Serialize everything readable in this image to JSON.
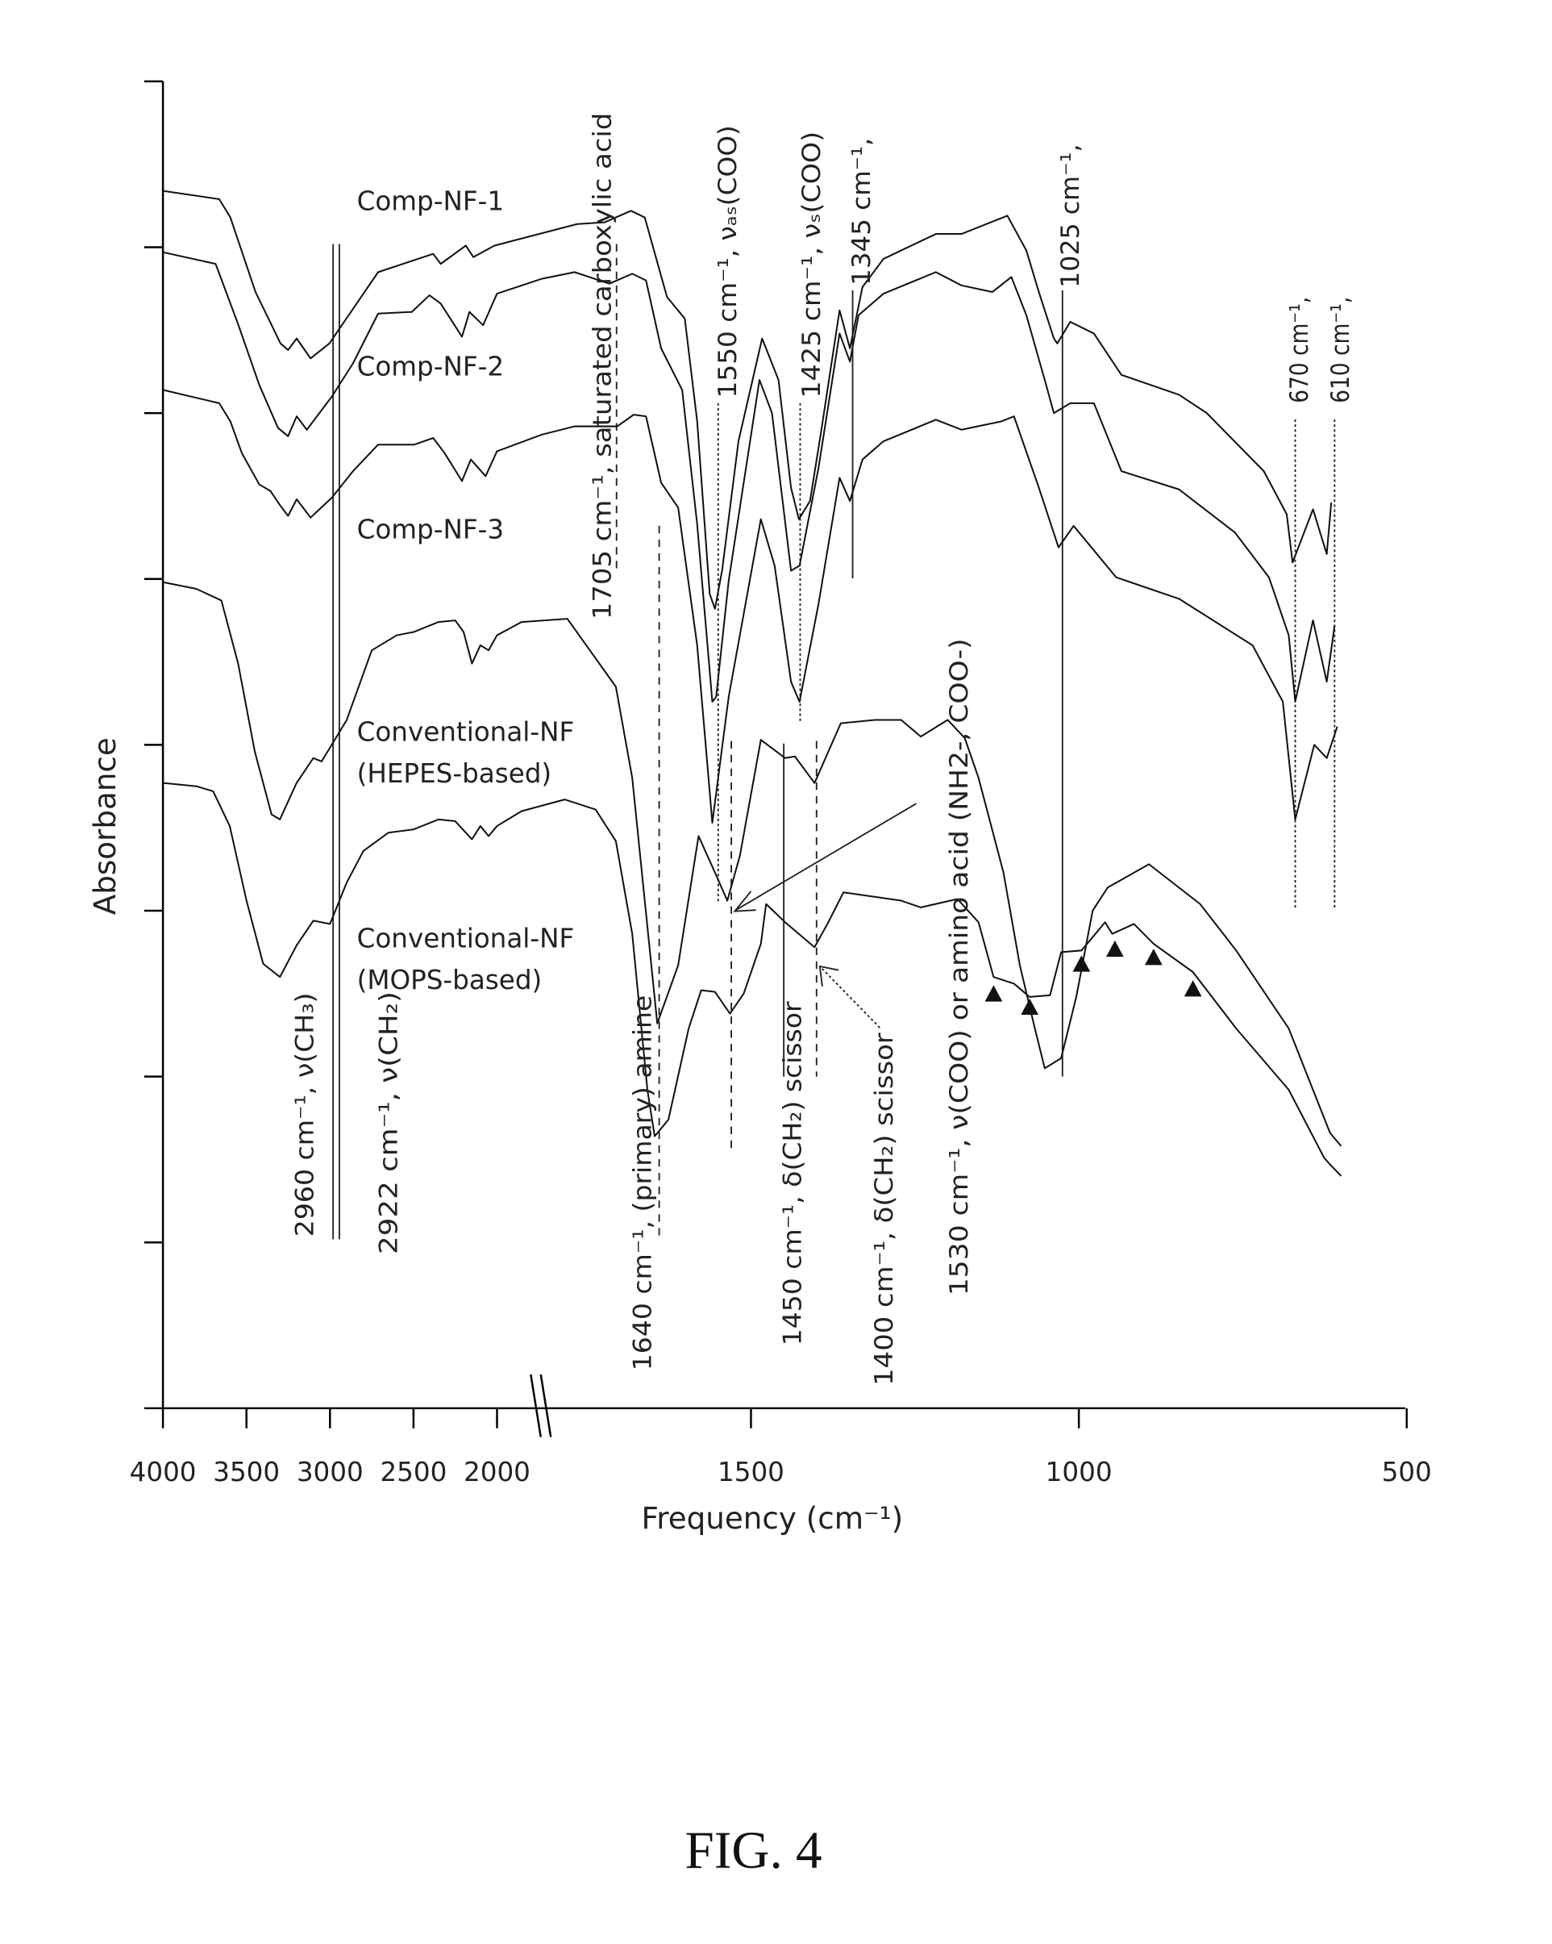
{
  "chart_data": {
    "type": "line",
    "title": "",
    "xlabel": "Frequency (cm⁻¹)",
    "ylabel": "Absorbance",
    "xlim": [
      4000,
      500
    ],
    "x_axis_break": [
      2000,
      1850
    ],
    "ylim": [
      0,
      8
    ],
    "grid": false,
    "x_ticks": [
      {
        "value": 4000,
        "label": "4000"
      },
      {
        "value": 3500,
        "label": "3500"
      },
      {
        "value": 3000,
        "label": "3000"
      },
      {
        "value": 2500,
        "label": "2500"
      },
      {
        "value": 2000,
        "label": "2000"
      },
      {
        "value": 1500,
        "label": "1500"
      },
      {
        "value": 1000,
        "label": "1000"
      },
      {
        "value": 500,
        "label": "500"
      }
    ],
    "y_ticks": [
      0,
      1,
      2,
      3,
      4,
      5,
      6,
      7,
      8
    ],
    "series": [
      {
        "name": "Comp-NF-1",
        "points": [
          [
            4000,
            7.34
          ],
          [
            3663,
            7.29
          ],
          [
            3596,
            7.18
          ],
          [
            3446,
            6.73
          ],
          [
            3296,
            6.42
          ],
          [
            3251,
            6.38
          ],
          [
            3199,
            6.45
          ],
          [
            3116,
            6.33
          ],
          [
            3004,
            6.42
          ],
          [
            2712,
            6.85
          ],
          [
            2382,
            6.96
          ],
          [
            2337,
            6.9
          ],
          [
            2187,
            7.01
          ],
          [
            2142,
            6.94
          ],
          [
            2015,
            7.01
          ],
          [
            1765,
            7.14
          ],
          [
            1723,
            7.15
          ],
          [
            1683,
            7.22
          ],
          [
            1662,
            7.18
          ],
          [
            1628,
            6.7
          ],
          [
            1601,
            6.57
          ],
          [
            1582,
            5.95
          ],
          [
            1563,
            4.91
          ],
          [
            1555,
            4.82
          ],
          [
            1544,
            5.05
          ],
          [
            1519,
            5.83
          ],
          [
            1483,
            6.45
          ],
          [
            1458,
            6.2
          ],
          [
            1439,
            5.55
          ],
          [
            1427,
            5.36
          ],
          [
            1410,
            5.47
          ],
          [
            1393,
            5.89
          ],
          [
            1365,
            6.62
          ],
          [
            1349,
            6.39
          ],
          [
            1330,
            6.76
          ],
          [
            1298,
            6.93
          ],
          [
            1218,
            7.08
          ],
          [
            1179,
            7.08
          ],
          [
            1109,
            7.19
          ],
          [
            1080,
            6.98
          ],
          [
            1061,
            6.73
          ],
          [
            1038,
            6.45
          ],
          [
            1033,
            6.42
          ],
          [
            1013,
            6.55
          ],
          [
            977,
            6.48
          ],
          [
            935,
            6.23
          ],
          [
            847,
            6.11
          ],
          [
            805,
            6.0
          ],
          [
            718,
            5.65
          ],
          [
            683,
            5.39
          ],
          [
            674,
            5.1
          ],
          [
            643,
            5.42
          ],
          [
            622,
            5.15
          ],
          [
            615,
            5.46
          ]
        ]
      },
      {
        "name": "Comp-NF-2",
        "points": [
          [
            4000,
            6.97
          ],
          [
            3685,
            6.9
          ],
          [
            3551,
            6.54
          ],
          [
            3423,
            6.17
          ],
          [
            3311,
            5.91
          ],
          [
            3251,
            5.86
          ],
          [
            3199,
            5.98
          ],
          [
            3139,
            5.9
          ],
          [
            2989,
            6.1
          ],
          [
            2862,
            6.3
          ],
          [
            2712,
            6.6
          ],
          [
            2510,
            6.61
          ],
          [
            2405,
            6.71
          ],
          [
            2337,
            6.66
          ],
          [
            2210,
            6.46
          ],
          [
            2165,
            6.61
          ],
          [
            2083,
            6.53
          ],
          [
            2000,
            6.72
          ],
          [
            1819,
            6.81
          ],
          [
            1769,
            6.85
          ],
          [
            1716,
            6.78
          ],
          [
            1681,
            6.84
          ],
          [
            1660,
            6.8
          ],
          [
            1637,
            6.39
          ],
          [
            1605,
            6.14
          ],
          [
            1582,
            5.33
          ],
          [
            1559,
            4.26
          ],
          [
            1553,
            4.29
          ],
          [
            1534,
            4.99
          ],
          [
            1487,
            6.2
          ],
          [
            1468,
            6.0
          ],
          [
            1439,
            5.05
          ],
          [
            1426,
            5.08
          ],
          [
            1397,
            5.67
          ],
          [
            1365,
            6.48
          ],
          [
            1349,
            6.31
          ],
          [
            1336,
            6.59
          ],
          [
            1298,
            6.72
          ],
          [
            1218,
            6.85
          ],
          [
            1179,
            6.77
          ],
          [
            1132,
            6.73
          ],
          [
            1103,
            6.82
          ],
          [
            1080,
            6.59
          ],
          [
            1052,
            6.2
          ],
          [
            1038,
            6.0
          ],
          [
            1013,
            6.06
          ],
          [
            977,
            6.06
          ],
          [
            935,
            5.65
          ],
          [
            847,
            5.54
          ],
          [
            762,
            5.28
          ],
          [
            710,
            5.01
          ],
          [
            680,
            4.66
          ],
          [
            670,
            4.26
          ],
          [
            643,
            4.75
          ],
          [
            622,
            4.38
          ],
          [
            610,
            4.72
          ]
        ]
      },
      {
        "name": "Comp-NF-3",
        "points": [
          [
            4000,
            6.14
          ],
          [
            3663,
            6.06
          ],
          [
            3596,
            5.95
          ],
          [
            3528,
            5.76
          ],
          [
            3423,
            5.57
          ],
          [
            3356,
            5.53
          ],
          [
            3296,
            5.44
          ],
          [
            3251,
            5.38
          ],
          [
            3199,
            5.48
          ],
          [
            3116,
            5.37
          ],
          [
            2989,
            5.49
          ],
          [
            2862,
            5.65
          ],
          [
            2712,
            5.81
          ],
          [
            2495,
            5.81
          ],
          [
            2382,
            5.85
          ],
          [
            2315,
            5.76
          ],
          [
            2210,
            5.59
          ],
          [
            2157,
            5.72
          ],
          [
            2068,
            5.62
          ],
          [
            2000,
            5.77
          ],
          [
            1819,
            5.87
          ],
          [
            1769,
            5.92
          ],
          [
            1704,
            5.92
          ],
          [
            1679,
            5.99
          ],
          [
            1660,
            5.98
          ],
          [
            1637,
            5.58
          ],
          [
            1611,
            5.43
          ],
          [
            1582,
            4.6
          ],
          [
            1559,
            3.53
          ],
          [
            1534,
            4.29
          ],
          [
            1485,
            5.36
          ],
          [
            1464,
            5.08
          ],
          [
            1439,
            4.38
          ],
          [
            1426,
            4.26
          ],
          [
            1397,
            4.85
          ],
          [
            1365,
            5.61
          ],
          [
            1349,
            5.47
          ],
          [
            1330,
            5.72
          ],
          [
            1298,
            5.83
          ],
          [
            1218,
            5.96
          ],
          [
            1179,
            5.9
          ],
          [
            1118,
            5.95
          ],
          [
            1099,
            5.98
          ],
          [
            1061,
            5.55
          ],
          [
            1031,
            5.19
          ],
          [
            1008,
            5.32
          ],
          [
            943,
            5.01
          ],
          [
            847,
            4.88
          ],
          [
            735,
            4.6
          ],
          [
            689,
            4.26
          ],
          [
            670,
            3.55
          ],
          [
            641,
            4.0
          ],
          [
            622,
            3.92
          ],
          [
            606,
            4.11
          ]
        ]
      },
      {
        "name": "Conventional-NF (HEPES-based)",
        "points": [
          [
            4000,
            4.98
          ],
          [
            3800,
            4.94
          ],
          [
            3650,
            4.87
          ],
          [
            3550,
            4.49
          ],
          [
            3450,
            3.96
          ],
          [
            3350,
            3.58
          ],
          [
            3300,
            3.55
          ],
          [
            3200,
            3.77
          ],
          [
            3100,
            3.92
          ],
          [
            3050,
            3.9
          ],
          [
            2960,
            4.05
          ],
          [
            2900,
            4.15
          ],
          [
            2750,
            4.57
          ],
          [
            2600,
            4.66
          ],
          [
            2500,
            4.68
          ],
          [
            2350,
            4.74
          ],
          [
            2250,
            4.75
          ],
          [
            2200,
            4.68
          ],
          [
            2150,
            4.49
          ],
          [
            2100,
            4.6
          ],
          [
            2050,
            4.57
          ],
          [
            2000,
            4.66
          ],
          [
            1850,
            4.74
          ],
          [
            1780,
            4.76
          ],
          [
            1706,
            4.35
          ],
          [
            1681,
            3.8
          ],
          [
            1643,
            2.32
          ],
          [
            1611,
            2.67
          ],
          [
            1580,
            3.45
          ],
          [
            1555,
            3.23
          ],
          [
            1536,
            3.06
          ],
          [
            1517,
            3.33
          ],
          [
            1485,
            4.03
          ],
          [
            1448,
            3.92
          ],
          [
            1433,
            3.93
          ],
          [
            1403,
            3.77
          ],
          [
            1363,
            4.13
          ],
          [
            1311,
            4.15
          ],
          [
            1271,
            4.15
          ],
          [
            1241,
            4.05
          ],
          [
            1200,
            4.15
          ],
          [
            1174,
            4.04
          ],
          [
            1153,
            3.8
          ],
          [
            1115,
            3.23
          ],
          [
            1090,
            2.67
          ],
          [
            1067,
            2.29
          ],
          [
            1052,
            2.05
          ],
          [
            1027,
            2.11
          ],
          [
            1004,
            2.48
          ],
          [
            979,
            3.0
          ],
          [
            956,
            3.14
          ],
          [
            893,
            3.28
          ],
          [
            815,
            3.04
          ],
          [
            760,
            2.76
          ],
          [
            680,
            2.29
          ],
          [
            617,
            1.66
          ],
          [
            600,
            1.58
          ]
        ]
      },
      {
        "name": "Conventional-NF (MOPS-based)",
        "points": [
          [
            4000,
            3.77
          ],
          [
            3800,
            3.75
          ],
          [
            3700,
            3.72
          ],
          [
            3600,
            3.51
          ],
          [
            3500,
            3.06
          ],
          [
            3400,
            2.68
          ],
          [
            3300,
            2.6
          ],
          [
            3200,
            2.79
          ],
          [
            3100,
            2.94
          ],
          [
            3000,
            2.92
          ],
          [
            2960,
            3.02
          ],
          [
            2900,
            3.17
          ],
          [
            2800,
            3.36
          ],
          [
            2650,
            3.47
          ],
          [
            2500,
            3.49
          ],
          [
            2350,
            3.55
          ],
          [
            2250,
            3.54
          ],
          [
            2150,
            3.43
          ],
          [
            2100,
            3.51
          ],
          [
            2050,
            3.45
          ],
          [
            2000,
            3.51
          ],
          [
            1850,
            3.6
          ],
          [
            1784,
            3.67
          ],
          [
            1737,
            3.61
          ],
          [
            1706,
            3.42
          ],
          [
            1681,
            2.86
          ],
          [
            1658,
            1.92
          ],
          [
            1647,
            1.64
          ],
          [
            1626,
            1.74
          ],
          [
            1595,
            2.29
          ],
          [
            1576,
            2.52
          ],
          [
            1555,
            2.51
          ],
          [
            1532,
            2.38
          ],
          [
            1511,
            2.5
          ],
          [
            1485,
            2.8
          ],
          [
            1477,
            3.04
          ],
          [
            1448,
            2.93
          ],
          [
            1403,
            2.78
          ],
          [
            1382,
            2.93
          ],
          [
            1359,
            3.11
          ],
          [
            1271,
            3.06
          ],
          [
            1241,
            3.02
          ],
          [
            1185,
            3.07
          ],
          [
            1153,
            2.93
          ],
          [
            1130,
            2.6
          ],
          [
            1099,
            2.56
          ],
          [
            1075,
            2.48
          ],
          [
            1044,
            2.49
          ],
          [
            1027,
            2.75
          ],
          [
            996,
            2.76
          ],
          [
            960,
            2.93
          ],
          [
            949,
            2.86
          ],
          [
            916,
            2.92
          ],
          [
            886,
            2.8
          ],
          [
            826,
            2.63
          ],
          [
            760,
            2.29
          ],
          [
            680,
            1.92
          ],
          [
            626,
            1.51
          ],
          [
            617,
            1.47
          ],
          [
            600,
            1.4
          ]
        ]
      }
    ],
    "series_labels": {
      "nf1": "Comp-NF-1",
      "nf2": "Comp-NF-2",
      "nf3": "Comp-NF-3",
      "hepes_1": "Conventional-NF",
      "hepes_2": "(HEPES-based)",
      "mops_1": "Conventional-NF",
      "mops_2": "(MOPS-based)"
    },
    "triangle_markers": [
      [
        1130,
        2.49
      ],
      [
        1075,
        2.41
      ],
      [
        996,
        2.67
      ],
      [
        945,
        2.76
      ],
      [
        886,
        2.71
      ],
      [
        826,
        2.52
      ]
    ],
    "annotations": {
      "a2960": {
        "wavenumber": 2960,
        "label": "2960 cm⁻¹, ν(CH₃)"
      },
      "a2922": {
        "wavenumber": 2922,
        "label": "2922 cm⁻¹, ν(CH₂)"
      },
      "a1705": {
        "wavenumber": 1705,
        "label": "1705 cm⁻¹, saturated carboxylic acid"
      },
      "a1640": {
        "wavenumber": 1640,
        "label": "1640 cm⁻¹, (primary) amine"
      },
      "a1550": {
        "wavenumber": 1550,
        "label": "1550 cm⁻¹, νₐₛ(COO)"
      },
      "a1530": {
        "wavenumber": 1530,
        "label": "1530 cm⁻¹, ν(COO) or amino acid (NH2-, COO-)"
      },
      "a1450": {
        "wavenumber": 1450,
        "label": "1450 cm⁻¹, δ(CH₂) scissor"
      },
      "a1425": {
        "wavenumber": 1425,
        "label": "1425 cm⁻¹, νₛ(COO)"
      },
      "a1400": {
        "wavenumber": 1400,
        "label": "1400 cm⁻¹, δ(CH₂) scissor"
      },
      "a1345": {
        "wavenumber": 1345,
        "label": "1345 cm⁻¹,"
      },
      "a1025": {
        "wavenumber": 1025,
        "label": "1025 cm⁻¹,"
      },
      "a670": {
        "wavenumber": 670,
        "label": "670 cm⁻¹,"
      },
      "a610": {
        "wavenumber": 610,
        "label": "610 cm⁻¹,"
      }
    }
  },
  "figure_caption": "FIG. 4"
}
